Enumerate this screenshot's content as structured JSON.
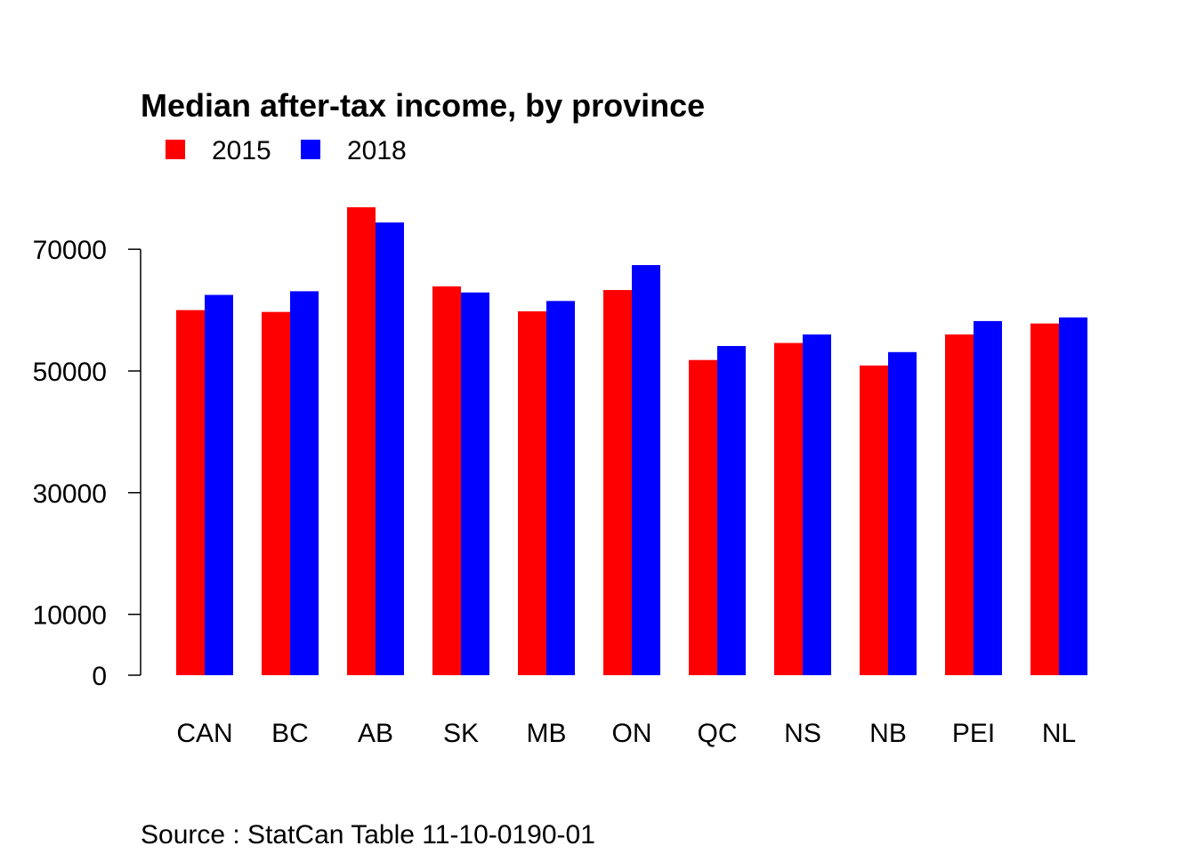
{
  "chart_data": {
    "type": "bar",
    "title": "Median after-tax income, by province",
    "xlabel": "",
    "ylabel": "",
    "categories": [
      "CAN",
      "BC",
      "AB",
      "SK",
      "MB",
      "ON",
      "QC",
      "NS",
      "NB",
      "PEI",
      "NL"
    ],
    "series": [
      {
        "name": "2015",
        "color": "#ff0000",
        "values": [
          60000,
          59700,
          76900,
          63900,
          59800,
          63300,
          51800,
          54600,
          50900,
          56000,
          57800
        ]
      },
      {
        "name": "2018",
        "color": "#0000ff",
        "values": [
          62500,
          63100,
          74400,
          62900,
          61500,
          67400,
          54100,
          56000,
          53100,
          58200,
          58800
        ]
      }
    ],
    "ylim": [
      0,
      80000
    ],
    "yticks": [
      0,
      10000,
      30000,
      50000,
      70000
    ],
    "ytick_labels": [
      "0",
      "10000",
      "30000",
      "50000",
      "70000"
    ],
    "grid": false,
    "legend_position": "top-left",
    "source": "Source : StatCan Table 11-10-0190-01"
  }
}
